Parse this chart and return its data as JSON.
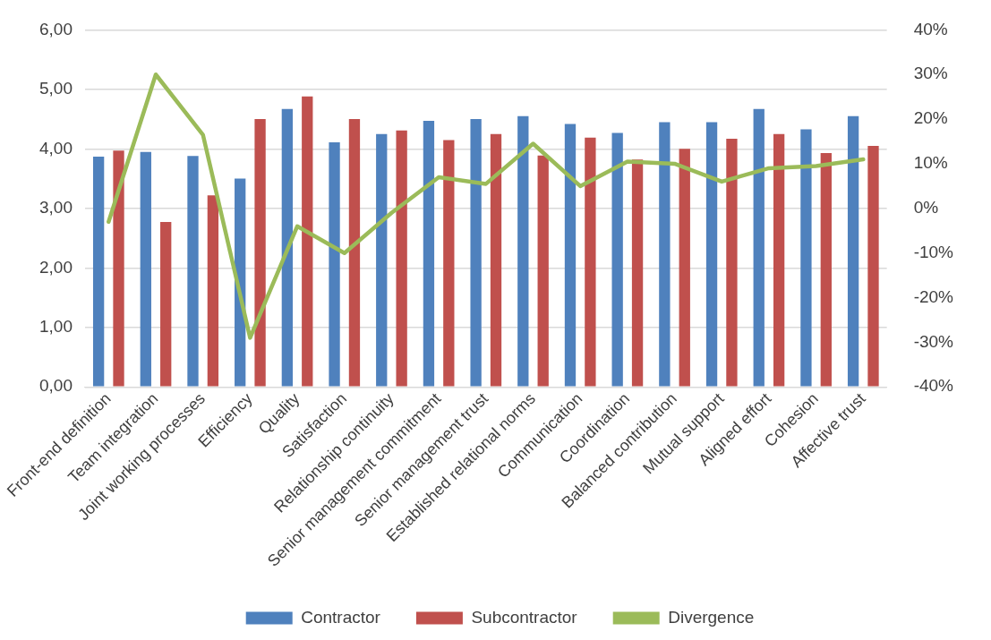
{
  "chart_data": {
    "type": "bar",
    "categories": [
      "Front-end definition",
      "Team integration",
      "Joint working processes",
      "Efficiency",
      "Quality",
      "Satisfaction",
      "Relationship continuity",
      "Senior management commitment",
      "Senior management trust",
      "Established relational norms",
      "Communication",
      "Coordination",
      "Balanced contribution",
      "Mutual support",
      "Aligned effort",
      "Cohesion",
      "Affective trust"
    ],
    "series": [
      {
        "name": "Contractor",
        "color": "#4f81bd",
        "values": [
          3.87,
          3.95,
          3.88,
          3.5,
          4.67,
          4.11,
          4.25,
          4.47,
          4.5,
          4.55,
          4.42,
          4.27,
          4.45,
          4.45,
          4.67,
          4.33,
          4.55
        ]
      },
      {
        "name": "Subcontractor",
        "color": "#c0504d",
        "values": [
          3.97,
          2.77,
          3.22,
          4.5,
          4.88,
          4.5,
          4.31,
          4.15,
          4.25,
          3.89,
          4.19,
          3.82,
          4.0,
          4.17,
          4.25,
          3.93,
          4.05
        ]
      },
      {
        "name": "Divergence",
        "type": "line",
        "axis": "y2",
        "color": "#9bbb59",
        "values": [
          -3,
          30,
          16.5,
          -29,
          -4,
          -10,
          -1,
          7,
          5.5,
          14.5,
          5,
          10.5,
          10,
          6,
          9,
          9.5,
          11
        ]
      }
    ],
    "ylim": [
      0,
      6
    ],
    "yticks": [
      {
        "value": 0,
        "label": "0,00"
      },
      {
        "value": 1,
        "label": "1,00"
      },
      {
        "value": 2,
        "label": "2,00"
      },
      {
        "value": 3,
        "label": "3,00"
      },
      {
        "value": 4,
        "label": "4,00"
      },
      {
        "value": 5,
        "label": "5,00"
      },
      {
        "value": 6,
        "label": "6,00"
      }
    ],
    "y2lim": [
      -40,
      40
    ],
    "y2ticks": [
      {
        "value": -40,
        "label": "-40%"
      },
      {
        "value": -30,
        "label": "-30%"
      },
      {
        "value": -20,
        "label": "-20%"
      },
      {
        "value": -10,
        "label": "-10%"
      },
      {
        "value": 0,
        "label": "0%"
      },
      {
        "value": 10,
        "label": "10%"
      },
      {
        "value": 20,
        "label": "20%"
      },
      {
        "value": 30,
        "label": "30%"
      },
      {
        "value": 40,
        "label": "40%"
      }
    ],
    "grid": "y",
    "legend": "bottom",
    "marker": "none"
  }
}
